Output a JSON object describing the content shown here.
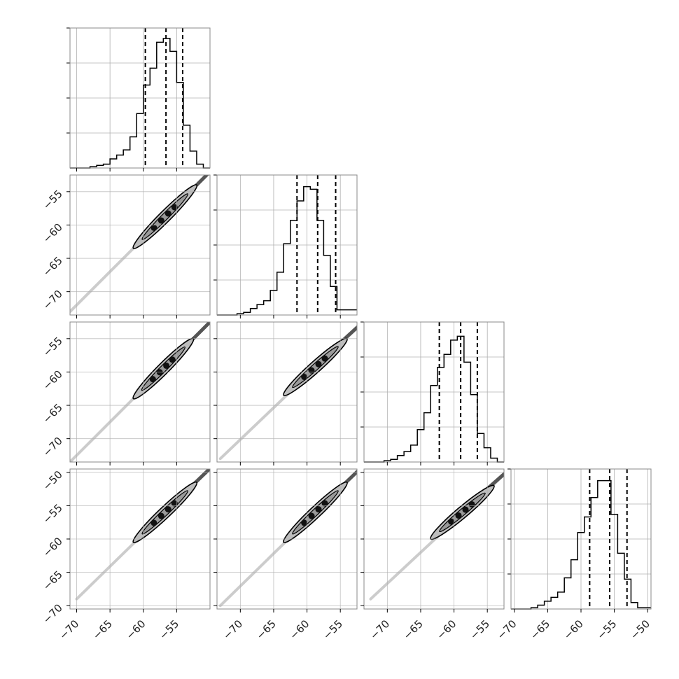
{
  "figure": {
    "type": "corner plot"
  },
  "chart_data": {
    "type": "corner",
    "n_params": 4,
    "colors": {
      "line": "#000000",
      "grid": "#b0b0b0",
      "frame": "#888888",
      "fill": "#bdbdbd"
    },
    "grid": true,
    "tick_values": [
      [
        -70,
        -65,
        -60,
        -55
      ],
      [
        -70,
        -65,
        -60,
        -55
      ],
      [
        -70,
        -65,
        -60,
        -55
      ],
      [
        -70,
        -65,
        -60,
        -55,
        -50
      ]
    ],
    "ranges": [
      [
        -71.0,
        -50.0
      ],
      [
        -73.5,
        -52.5
      ],
      [
        -73.5,
        -52.5
      ],
      [
        -70.5,
        -49.5
      ]
    ],
    "diagonal": [
      {
        "quantiles": [
          -59.7,
          -56.6,
          -54.1
        ],
        "hist_edges": [
          -71.0,
          -70.0,
          -69.0,
          -68.0,
          -67.0,
          -66.0,
          -65.0,
          -64.0,
          -63.0,
          -62.0,
          -61.0,
          -60.0,
          -59.0,
          -58.0,
          -57.0,
          -56.0,
          -55.0,
          -54.0,
          -53.0,
          -52.0,
          -51.0,
          -50.0
        ],
        "counts": [
          0.0,
          0.0,
          0.0,
          0.01,
          0.02,
          0.03,
          0.07,
          0.1,
          0.14,
          0.24,
          0.42,
          0.64,
          0.77,
          0.97,
          1.0,
          0.9,
          0.66,
          0.33,
          0.13,
          0.03,
          0.0
        ]
      },
      {
        "quantiles": [
          -61.5,
          -58.4,
          -55.7
        ],
        "hist_edges": [
          -73.5,
          -72.5,
          -71.5,
          -70.5,
          -69.5,
          -68.5,
          -67.5,
          -66.5,
          -65.5,
          -64.5,
          -63.5,
          -62.5,
          -61.5,
          -60.5,
          -59.5,
          -58.5,
          -57.5,
          -56.5,
          -55.5,
          -54.5,
          -53.5,
          -52.5
        ],
        "counts": [
          0.0,
          0.0,
          0.0,
          0.01,
          0.02,
          0.05,
          0.08,
          0.11,
          0.19,
          0.33,
          0.55,
          0.73,
          0.88,
          0.99,
          0.97,
          0.73,
          0.46,
          0.22,
          0.04,
          0.04,
          0.04
        ]
      },
      {
        "quantiles": [
          -62.2,
          -59.0,
          -56.5
        ],
        "hist_edges": [
          -73.5,
          -72.5,
          -71.5,
          -70.5,
          -69.5,
          -68.5,
          -67.5,
          -66.5,
          -65.5,
          -64.5,
          -63.5,
          -62.5,
          -61.5,
          -60.5,
          -59.5,
          -58.5,
          -57.5,
          -56.5,
          -55.5,
          -54.5,
          -53.5,
          -52.5
        ],
        "counts": [
          0.0,
          0.0,
          0.0,
          0.01,
          0.02,
          0.05,
          0.08,
          0.13,
          0.25,
          0.38,
          0.59,
          0.73,
          0.83,
          0.94,
          0.97,
          0.77,
          0.52,
          0.22,
          0.11,
          0.03,
          0.0
        ]
      },
      {
        "quantiles": [
          -58.7,
          -55.7,
          -53.1
        ],
        "hist_edges": [
          -70.5,
          -69.5,
          -68.5,
          -67.5,
          -66.5,
          -65.5,
          -64.5,
          -63.5,
          -62.5,
          -61.5,
          -60.5,
          -59.5,
          -58.5,
          -57.5,
          -56.5,
          -55.5,
          -54.5,
          -53.5,
          -52.5,
          -51.5,
          -50.5,
          -49.5
        ],
        "counts": [
          0.0,
          0.0,
          0.0,
          0.01,
          0.03,
          0.06,
          0.09,
          0.13,
          0.24,
          0.38,
          0.59,
          0.71,
          0.86,
          0.99,
          0.99,
          0.73,
          0.43,
          0.23,
          0.05,
          0.01,
          0.01
        ]
      }
    ],
    "pairs": [
      {
        "row": 1,
        "col": 0,
        "x_tail": -72.0,
        "x_core": [
          -61.0,
          -52.5
        ],
        "ellipse": {
          "x": [
            -61.5,
            -52.0
          ],
          "y": [
            -63.5,
            -54.0
          ]
        }
      },
      {
        "row": 2,
        "col": 0,
        "x_tail": -72.0,
        "x_core": [
          -61.0,
          -53.0
        ],
        "ellipse": {
          "x": [
            -61.5,
            -52.5
          ],
          "y": [
            -64.0,
            -55.0
          ]
        }
      },
      {
        "row": 2,
        "col": 1,
        "x_tail": -73.0,
        "x_core": [
          -62.0,
          -55.0
        ],
        "ellipse": {
          "x": [
            -63.5,
            -54.0
          ],
          "y": [
            -63.5,
            -55.0
          ]
        }
      },
      {
        "row": 3,
        "col": 0,
        "x_tail": -70.0,
        "x_core": [
          -61.0,
          -52.5
        ],
        "ellipse": {
          "x": [
            -61.5,
            -52.0
          ],
          "y": [
            -60.5,
            -51.5
          ]
        }
      },
      {
        "row": 3,
        "col": 1,
        "x_tail": -73.0,
        "x_core": [
          -62.5,
          -55.0
        ],
        "ellipse": {
          "x": [
            -63.5,
            -54.0
          ],
          "y": [
            -60.5,
            -51.5
          ]
        }
      },
      {
        "row": 3,
        "col": 2,
        "x_tail": -72.5,
        "x_core": [
          -63.0,
          -55.5
        ],
        "ellipse": {
          "x": [
            -63.5,
            -54.0
          ],
          "y": [
            -60.0,
            -52.0
          ]
        }
      }
    ]
  }
}
